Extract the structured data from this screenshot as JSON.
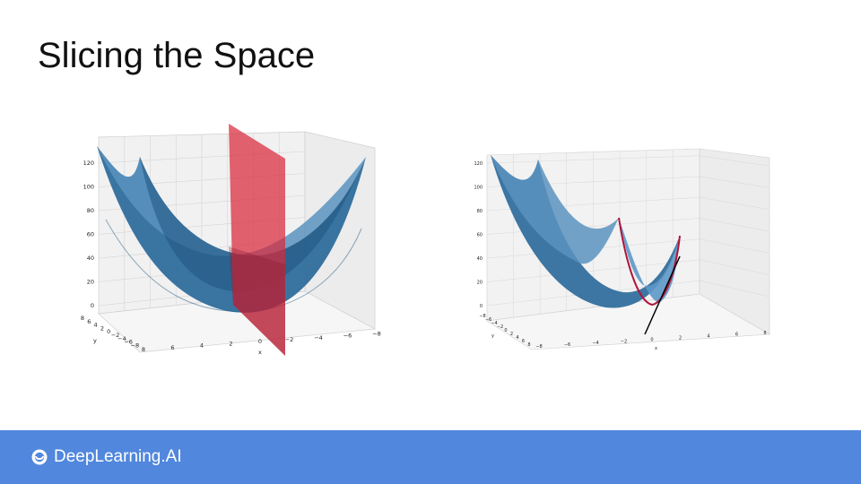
{
  "slide": {
    "title": "Slicing the Space"
  },
  "footer": {
    "brand": "DeepLearning.AI",
    "logo_icon": "deeplearning-logo-icon",
    "background": "#5187dd"
  },
  "plots": {
    "left": {
      "z_ticks": [
        "0",
        "20",
        "40",
        "60",
        "80",
        "100",
        "120"
      ],
      "x_ticks": [
        "8",
        "6",
        "4",
        "2",
        "0",
        "−2",
        "−4",
        "−6",
        "−8"
      ],
      "x_label": "x",
      "y_ticks": [
        "8",
        "6",
        "4",
        "2",
        "0",
        "−2",
        "−4",
        "−6",
        "−8"
      ],
      "y_label": "y",
      "surface_color": "#3f7fab",
      "plane_color": "#d9283c"
    },
    "right": {
      "z_ticks": [
        "0",
        "20",
        "40",
        "60",
        "80",
        "100",
        "120"
      ],
      "x_ticks": [
        "−8",
        "−6",
        "−4",
        "−2",
        "0",
        "2",
        "4",
        "6",
        "8"
      ],
      "x_label": "x",
      "y_ticks": [
        "−8",
        "−6",
        "−4",
        "−2",
        "0",
        "2",
        "4",
        "6",
        "8"
      ],
      "y_label": "y",
      "surface_color": "#3f7fab",
      "curve_color": "#b0143a",
      "tangent_color": "#000000"
    }
  }
}
